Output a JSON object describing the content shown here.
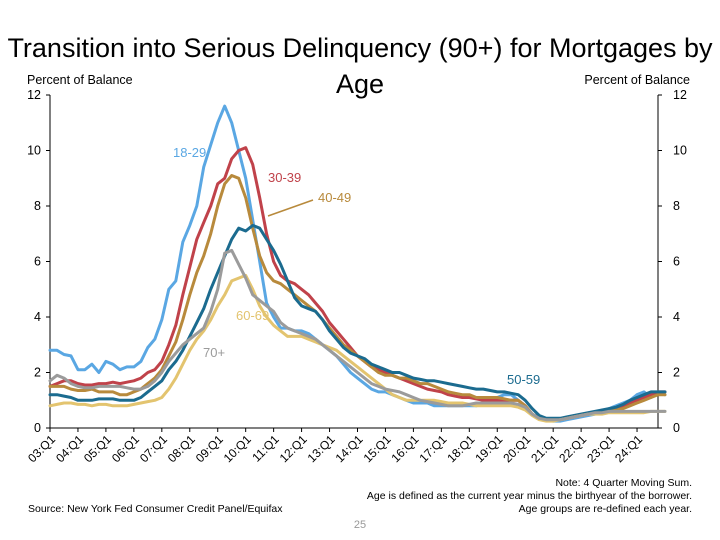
{
  "title": "Transition into Serious Delinquency (90+) for Mortgages by Age",
  "left_axis_title": "Percent of Balance",
  "right_axis_title": "Percent of Balance",
  "note_lines": [
    "Note: 4 Quarter Moving Sum.",
    "Age is defined as the current year minus the birthyear of the borrower.",
    "Age groups are re-defined each year."
  ],
  "source": "Source: New York Fed Consumer Credit Panel/Equifax",
  "page_number": "25",
  "chart_data": {
    "type": "line",
    "title": "Transition into Serious Delinquency (90+) for Mortgages by Age",
    "ylabel": "Percent of Balance",
    "y2label": "Percent of Balance",
    "ylim": [
      0,
      12
    ],
    "yticks": [
      0,
      2,
      4,
      6,
      8,
      10,
      12
    ],
    "grid": false,
    "legend": "inline labels next to each line",
    "x_tick_labels": [
      "03:Q1",
      "04:Q1",
      "05:Q1",
      "06:Q1",
      "07:Q1",
      "08:Q1",
      "09:Q1",
      "10:Q1",
      "11:Q1",
      "12:Q1",
      "13:Q1",
      "14:Q1",
      "15:Q1",
      "16:Q1",
      "17:Q1",
      "18:Q1",
      "19:Q1",
      "20:Q1",
      "21:Q1",
      "22:Q1",
      "23:Q1",
      "24:Q1"
    ],
    "x_start": "03:Q1",
    "x_step": "quarter",
    "series": [
      {
        "name": "18-29",
        "color": "#5aa7e3",
        "values": [
          2.8,
          2.8,
          2.65,
          2.6,
          2.1,
          2.1,
          2.3,
          2.0,
          2.4,
          2.3,
          2.1,
          2.2,
          2.2,
          2.4,
          2.9,
          3.2,
          3.9,
          5.0,
          5.3,
          6.7,
          7.3,
          8.0,
          9.4,
          10.2,
          11.0,
          11.6,
          11.0,
          10.0,
          9.0,
          7.5,
          6.0,
          4.5,
          4.0,
          3.6,
          3.6,
          3.5,
          3.5,
          3.4,
          3.2,
          3.0,
          2.8,
          2.6,
          2.3,
          2.0,
          1.8,
          1.6,
          1.4,
          1.3,
          1.3,
          1.2,
          1.1,
          1.0,
          0.9,
          0.9,
          0.9,
          0.8,
          0.8,
          0.8,
          0.8,
          0.8,
          0.8,
          0.8,
          0.9,
          1.0,
          1.1,
          1.2,
          1.2,
          1.0,
          0.8,
          0.5,
          0.35,
          0.3,
          0.25,
          0.25,
          0.3,
          0.35,
          0.4,
          0.45,
          0.5,
          0.6,
          0.7,
          0.8,
          0.9,
          1.0,
          1.2,
          1.3,
          1.1,
          1.3,
          1.2
        ]
      },
      {
        "name": "30-39",
        "color": "#c0424a",
        "values": [
          1.5,
          1.6,
          1.7,
          1.7,
          1.6,
          1.55,
          1.55,
          1.6,
          1.6,
          1.65,
          1.6,
          1.65,
          1.7,
          1.8,
          2.0,
          2.1,
          2.4,
          3.0,
          3.7,
          4.8,
          5.8,
          6.8,
          7.4,
          8.0,
          8.8,
          9.0,
          9.7,
          10.0,
          10.1,
          9.5,
          8.3,
          7.0,
          6.0,
          5.5,
          5.3,
          5.2,
          5.0,
          4.8,
          4.5,
          4.2,
          3.8,
          3.5,
          3.2,
          2.9,
          2.6,
          2.4,
          2.2,
          2.1,
          2.0,
          1.9,
          1.8,
          1.7,
          1.6,
          1.5,
          1.4,
          1.35,
          1.3,
          1.2,
          1.15,
          1.1,
          1.1,
          1.05,
          1.0,
          1.0,
          1.0,
          1.0,
          1.0,
          1.0,
          0.8,
          0.5,
          0.35,
          0.3,
          0.3,
          0.3,
          0.35,
          0.4,
          0.45,
          0.5,
          0.55,
          0.6,
          0.65,
          0.7,
          0.75,
          0.9,
          1.0,
          1.1,
          1.2,
          1.3,
          1.3
        ]
      },
      {
        "name": "40-49",
        "color": "#b88a3c",
        "values": [
          1.5,
          1.5,
          1.5,
          1.4,
          1.35,
          1.35,
          1.4,
          1.3,
          1.3,
          1.3,
          1.2,
          1.2,
          1.3,
          1.4,
          1.6,
          1.8,
          2.1,
          2.6,
          3.1,
          3.9,
          4.8,
          5.6,
          6.2,
          7.0,
          8.0,
          8.8,
          9.1,
          9.0,
          8.3,
          7.2,
          6.2,
          5.6,
          5.3,
          5.2,
          5.0,
          4.8,
          4.6,
          4.4,
          4.2,
          3.9,
          3.6,
          3.3,
          3.0,
          2.8,
          2.6,
          2.4,
          2.2,
          2.0,
          1.9,
          1.9,
          1.8,
          1.8,
          1.7,
          1.6,
          1.6,
          1.5,
          1.4,
          1.3,
          1.25,
          1.2,
          1.2,
          1.1,
          1.1,
          1.1,
          1.1,
          1.05,
          1.0,
          1.0,
          0.8,
          0.5,
          0.35,
          0.3,
          0.3,
          0.3,
          0.35,
          0.4,
          0.45,
          0.5,
          0.55,
          0.6,
          0.6,
          0.65,
          0.7,
          0.8,
          0.9,
          1.0,
          1.1,
          1.2,
          1.2
        ]
      },
      {
        "name": "50-59",
        "color": "#1b6b8f",
        "values": [
          1.2,
          1.2,
          1.15,
          1.1,
          1.0,
          1.0,
          1.0,
          1.05,
          1.05,
          1.05,
          1.0,
          1.0,
          1.0,
          1.1,
          1.3,
          1.5,
          1.7,
          2.1,
          2.4,
          2.8,
          3.3,
          3.8,
          4.3,
          5.0,
          5.6,
          6.2,
          6.8,
          7.2,
          7.1,
          7.3,
          7.2,
          6.8,
          6.4,
          5.9,
          5.3,
          4.7,
          4.4,
          4.3,
          4.2,
          3.9,
          3.5,
          3.2,
          2.9,
          2.7,
          2.6,
          2.5,
          2.3,
          2.2,
          2.1,
          2.0,
          2.0,
          1.9,
          1.8,
          1.75,
          1.7,
          1.7,
          1.65,
          1.6,
          1.55,
          1.5,
          1.45,
          1.4,
          1.4,
          1.35,
          1.3,
          1.3,
          1.25,
          1.2,
          1.0,
          0.7,
          0.45,
          0.35,
          0.35,
          0.35,
          0.4,
          0.45,
          0.5,
          0.55,
          0.6,
          0.65,
          0.7,
          0.75,
          0.85,
          1.0,
          1.1,
          1.2,
          1.3,
          1.3,
          1.3
        ]
      },
      {
        "name": "60-69",
        "color": "#e3c46f",
        "values": [
          0.8,
          0.85,
          0.9,
          0.9,
          0.85,
          0.85,
          0.8,
          0.85,
          0.85,
          0.8,
          0.8,
          0.8,
          0.85,
          0.9,
          0.95,
          1.0,
          1.1,
          1.4,
          1.8,
          2.3,
          2.8,
          3.2,
          3.5,
          3.9,
          4.4,
          4.8,
          5.3,
          5.4,
          5.5,
          5.0,
          4.4,
          4.0,
          3.7,
          3.5,
          3.3,
          3.3,
          3.3,
          3.2,
          3.1,
          3.0,
          2.9,
          2.8,
          2.6,
          2.4,
          2.2,
          2.0,
          1.8,
          1.6,
          1.4,
          1.2,
          1.1,
          1.0,
          1.0,
          1.0,
          1.0,
          1.0,
          0.95,
          0.9,
          0.9,
          0.9,
          0.85,
          0.8,
          0.8,
          0.8,
          0.8,
          0.8,
          0.8,
          0.75,
          0.65,
          0.45,
          0.3,
          0.25,
          0.25,
          0.3,
          0.35,
          0.4,
          0.45,
          0.5,
          0.5,
          0.5,
          0.55,
          0.55,
          0.55,
          0.55,
          0.55,
          0.55,
          0.6,
          0.6,
          0.6
        ]
      },
      {
        "name": "70+",
        "color": "#9b9b9b",
        "values": [
          1.7,
          1.9,
          1.8,
          1.6,
          1.5,
          1.45,
          1.45,
          1.5,
          1.5,
          1.5,
          1.5,
          1.45,
          1.4,
          1.4,
          1.5,
          1.7,
          2.0,
          2.4,
          2.7,
          3.0,
          3.2,
          3.4,
          3.6,
          4.2,
          5.0,
          6.3,
          6.4,
          5.9,
          5.4,
          4.8,
          4.6,
          4.4,
          4.2,
          3.8,
          3.6,
          3.5,
          3.4,
          3.3,
          3.2,
          3.0,
          2.8,
          2.6,
          2.4,
          2.2,
          2.0,
          1.8,
          1.6,
          1.5,
          1.4,
          1.35,
          1.3,
          1.2,
          1.1,
          1.0,
          0.95,
          0.9,
          0.85,
          0.8,
          0.8,
          0.8,
          0.85,
          0.9,
          0.9,
          0.9,
          0.9,
          0.9,
          0.9,
          0.85,
          0.75,
          0.5,
          0.35,
          0.3,
          0.3,
          0.3,
          0.35,
          0.4,
          0.45,
          0.5,
          0.55,
          0.55,
          0.6,
          0.6,
          0.6,
          0.6,
          0.6,
          0.6,
          0.6,
          0.6,
          0.6
        ]
      }
    ],
    "annotations": [
      {
        "text": "18-29",
        "series": "18-29"
      },
      {
        "text": "30-39",
        "series": "30-39"
      },
      {
        "text": "40-49",
        "series": "40-49"
      },
      {
        "text": "50-59",
        "series": "50-59"
      },
      {
        "text": "60-69",
        "series": "60-69"
      },
      {
        "text": "70+",
        "series": "70+"
      }
    ]
  }
}
